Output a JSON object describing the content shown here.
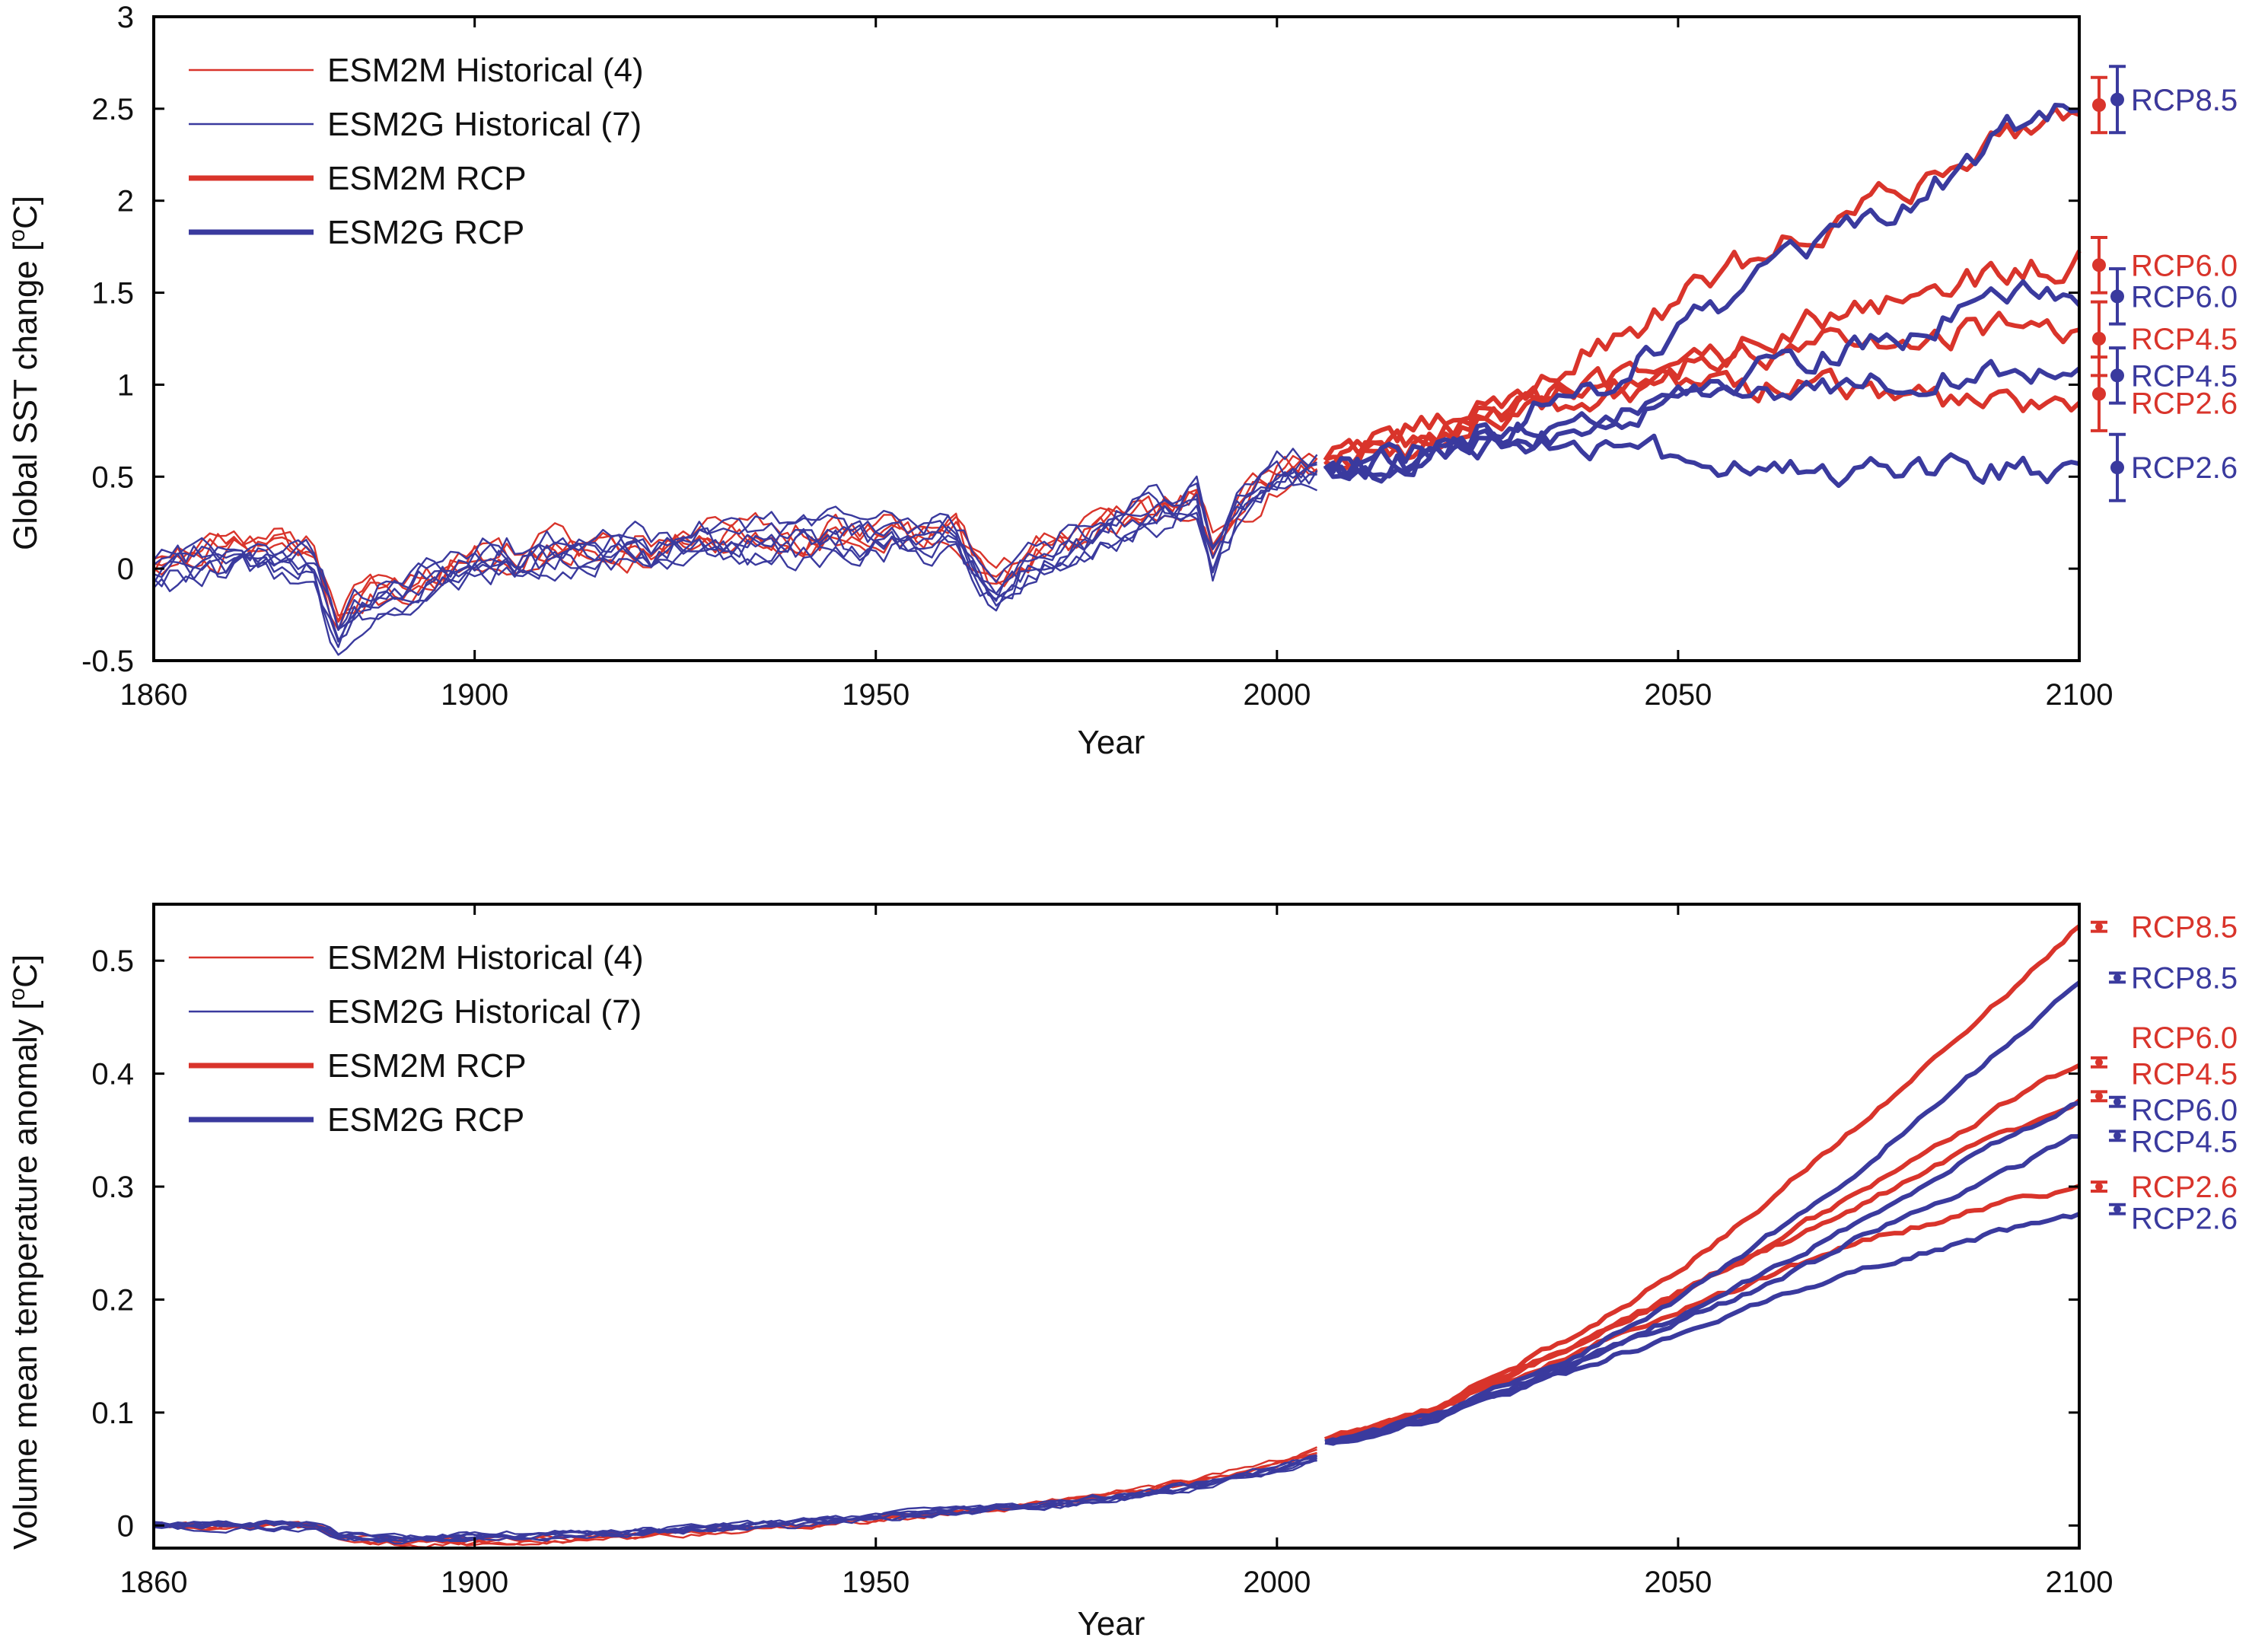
{
  "colors": {
    "esm2m": "#d9342b",
    "esm2g": "#3a3a9e",
    "axis": "#000000"
  },
  "chart_data": [
    {
      "type": "line",
      "xlabel": "Year",
      "ylabel": "Global SST change [°C]",
      "ylabel_parts": {
        "main": "Global SST change [",
        "sup": "o",
        "unit": "C]"
      },
      "xlim": [
        1860,
        2100
      ],
      "ylim": [
        -0.5,
        3
      ],
      "xticks": [
        1860,
        1900,
        1950,
        2000,
        2050,
        2100
      ],
      "yticks": [
        -0.5,
        0,
        0.5,
        1,
        1.5,
        2,
        2.5,
        3
      ],
      "ytick_labels": [
        "-0.5",
        "0",
        "0.5",
        "1",
        "1.5",
        "2",
        "2.5",
        "3"
      ],
      "grid": false,
      "legend_position": "upper-left",
      "legend": [
        {
          "label": "ESM2M Historical (4)",
          "color": "#d9342b",
          "weight": "thin"
        },
        {
          "label": "ESM2G Historical (7)",
          "color": "#3a3a9e",
          "weight": "thin"
        },
        {
          "label": "ESM2M RCP",
          "color": "#d9342b",
          "weight": "thick"
        },
        {
          "label": "ESM2G RCP",
          "color": "#3a3a9e",
          "weight": "thick"
        }
      ],
      "series": [
        {
          "model": "ESM2M",
          "kind": "historical",
          "color": "#d9342b",
          "x": [
            1860,
            1870,
            1880,
            1883,
            1885,
            1890,
            1900,
            1910,
            1920,
            1930,
            1940,
            1950,
            1960,
            1963,
            1965,
            1970,
            1980,
            1990,
            1992,
            1995,
            2000,
            2005
          ],
          "y": [
            0.05,
            0.12,
            0.1,
            -0.3,
            -0.18,
            -0.1,
            0.05,
            0.1,
            0.12,
            0.15,
            0.18,
            0.18,
            0.2,
            0.0,
            -0.1,
            0.1,
            0.25,
            0.4,
            0.1,
            0.35,
            0.5,
            0.58
          ]
        },
        {
          "model": "ESM2G",
          "kind": "historical",
          "color": "#3a3a9e",
          "x": [
            1860,
            1870,
            1880,
            1883,
            1885,
            1890,
            1900,
            1910,
            1920,
            1930,
            1940,
            1950,
            1960,
            1963,
            1965,
            1970,
            1980,
            1990,
            1992,
            1995,
            2000,
            2005
          ],
          "y": [
            0.0,
            0.05,
            0.02,
            -0.38,
            -0.25,
            -0.12,
            0.02,
            0.08,
            0.1,
            0.12,
            0.15,
            0.15,
            0.18,
            -0.05,
            -0.15,
            0.05,
            0.22,
            0.38,
            0.05,
            0.3,
            0.48,
            0.55
          ]
        },
        {
          "model": "ESM2M",
          "scenario": "RCP8.5",
          "kind": "rcp",
          "color": "#d9342b",
          "x": [
            2006,
            2010,
            2020,
            2030,
            2040,
            2050,
            2060,
            2070,
            2080,
            2090,
            2100
          ],
          "y": [
            0.62,
            0.62,
            0.78,
            0.95,
            1.2,
            1.45,
            1.7,
            1.9,
            2.1,
            2.35,
            2.52
          ]
        },
        {
          "model": "ESM2M",
          "scenario": "RCP6.0",
          "kind": "rcp",
          "color": "#d9342b",
          "x": [
            2006,
            2010,
            2020,
            2030,
            2040,
            2050,
            2060,
            2070,
            2080,
            2090,
            2100
          ],
          "y": [
            0.6,
            0.6,
            0.7,
            0.85,
            0.95,
            1.1,
            1.25,
            1.4,
            1.5,
            1.6,
            1.68
          ]
        },
        {
          "model": "ESM2M",
          "scenario": "RCP4.5",
          "kind": "rcp",
          "color": "#d9342b",
          "x": [
            2006,
            2010,
            2020,
            2030,
            2040,
            2050,
            2060,
            2070,
            2080,
            2090,
            2100
          ],
          "y": [
            0.6,
            0.62,
            0.72,
            0.85,
            0.98,
            1.08,
            1.18,
            1.22,
            1.28,
            1.3,
            1.25
          ]
        },
        {
          "model": "ESM2M",
          "scenario": "RCP2.6",
          "kind": "rcp",
          "color": "#d9342b",
          "x": [
            2006,
            2010,
            2020,
            2030,
            2040,
            2050,
            2060,
            2070,
            2080,
            2090,
            2100
          ],
          "y": [
            0.6,
            0.62,
            0.75,
            0.9,
            0.98,
            1.0,
            1.0,
            0.98,
            0.92,
            0.9,
            0.95
          ]
        },
        {
          "model": "ESM2G",
          "scenario": "RCP8.5",
          "kind": "rcp",
          "color": "#3a3a9e",
          "x": [
            2006,
            2010,
            2020,
            2030,
            2040,
            2050,
            2060,
            2070,
            2080,
            2090,
            2100
          ],
          "y": [
            0.55,
            0.55,
            0.65,
            0.82,
            1.0,
            1.3,
            1.55,
            1.78,
            2.0,
            2.35,
            2.55
          ]
        },
        {
          "model": "ESM2G",
          "scenario": "RCP6.0",
          "kind": "rcp",
          "color": "#3a3a9e",
          "x": [
            2006,
            2010,
            2020,
            2030,
            2040,
            2050,
            2060,
            2070,
            2080,
            2090,
            2100
          ],
          "y": [
            0.55,
            0.55,
            0.6,
            0.7,
            0.8,
            0.95,
            1.1,
            1.2,
            1.3,
            1.45,
            1.52
          ]
        },
        {
          "model": "ESM2G",
          "scenario": "RCP4.5",
          "kind": "rcp",
          "color": "#3a3a9e",
          "x": [
            2006,
            2010,
            2020,
            2030,
            2040,
            2050,
            2060,
            2070,
            2080,
            2090,
            2100
          ],
          "y": [
            0.55,
            0.55,
            0.65,
            0.75,
            0.85,
            0.9,
            0.95,
            1.0,
            1.05,
            1.05,
            1.05
          ]
        },
        {
          "model": "ESM2G",
          "scenario": "RCP2.6",
          "kind": "rcp",
          "color": "#3a3a9e",
          "x": [
            2006,
            2010,
            2020,
            2030,
            2040,
            2050,
            2060,
            2070,
            2080,
            2090,
            2100
          ],
          "y": [
            0.55,
            0.55,
            0.65,
            0.72,
            0.7,
            0.6,
            0.55,
            0.52,
            0.55,
            0.55,
            0.55
          ]
        }
      ],
      "endpoints": [
        {
          "model": "ESM2M",
          "label": "RCP8.5",
          "color": "#d9342b",
          "y": 2.52,
          "err": 0.15,
          "label_y": 2.55
        },
        {
          "model": "ESM2G",
          "label": "RCP8.5",
          "color": "#3a3a9e",
          "y": 2.55,
          "err": 0.18,
          "label_y": 2.55
        },
        {
          "model": "ESM2M",
          "label": "RCP6.0",
          "color": "#d9342b",
          "y": 1.65,
          "err": 0.15,
          "label_y": 1.65
        },
        {
          "model": "ESM2G",
          "label": "RCP6.0",
          "color": "#3a3a9e",
          "y": 1.48,
          "err": 0.15,
          "label_y": 1.48
        },
        {
          "model": "ESM2M",
          "label": "RCP4.5",
          "color": "#d9342b",
          "y": 1.25,
          "err": 0.2,
          "label_y": 1.25
        },
        {
          "model": "ESM2G",
          "label": "RCP4.5",
          "color": "#3a3a9e",
          "y": 1.05,
          "err": 0.15,
          "label_y": 1.05
        },
        {
          "model": "ESM2M",
          "label": "RCP2.6",
          "color": "#d9342b",
          "y": 0.95,
          "err": 0.2,
          "label_y": 0.9
        },
        {
          "model": "ESM2G",
          "label": "RCP2.6",
          "color": "#3a3a9e",
          "y": 0.55,
          "err": 0.18,
          "label_y": 0.55
        }
      ]
    },
    {
      "type": "line",
      "xlabel": "Year",
      "ylabel": "Volume mean temperature anomaly [°C]",
      "ylabel_parts": {
        "main": "Volume mean temperature anomaly [",
        "sup": "o",
        "unit": "C]"
      },
      "xlim": [
        1860,
        2100
      ],
      "ylim": [
        -0.02,
        0.55
      ],
      "xticks": [
        1860,
        1900,
        1950,
        2000,
        2050,
        2100
      ],
      "yticks": [
        0,
        0.1,
        0.2,
        0.3,
        0.4,
        0.5
      ],
      "ytick_labels": [
        "0",
        "0.1",
        "0.2",
        "0.3",
        "0.4",
        "0.5"
      ],
      "grid": false,
      "legend_position": "upper-left",
      "legend": [
        {
          "label": "ESM2M Historical (4)",
          "color": "#d9342b",
          "weight": "thin"
        },
        {
          "label": "ESM2G Historical (7)",
          "color": "#3a3a9e",
          "weight": "thin"
        },
        {
          "label": "ESM2M RCP",
          "color": "#d9342b",
          "weight": "thick"
        },
        {
          "label": "ESM2G RCP",
          "color": "#3a3a9e",
          "weight": "thick"
        }
      ],
      "series": [
        {
          "model": "ESM2M",
          "kind": "historical",
          "color": "#d9342b",
          "x": [
            1860,
            1880,
            1883,
            1890,
            1900,
            1920,
            1940,
            1950,
            1960,
            1970,
            1980,
            1990,
            2000,
            2005
          ],
          "y": [
            0.0,
            0.0,
            -0.01,
            -0.015,
            -0.015,
            -0.01,
            0.0,
            0.005,
            0.012,
            0.018,
            0.028,
            0.04,
            0.055,
            0.065
          ]
        },
        {
          "model": "ESM2G",
          "kind": "historical",
          "color": "#3a3a9e",
          "x": [
            1860,
            1880,
            1883,
            1890,
            1900,
            1920,
            1940,
            1950,
            1960,
            1970,
            1980,
            1990,
            2000,
            2005
          ],
          "y": [
            0.0,
            0.0,
            -0.008,
            -0.012,
            -0.01,
            -0.006,
            0.002,
            0.007,
            0.013,
            0.017,
            0.025,
            0.035,
            0.05,
            0.06
          ]
        },
        {
          "model": "ESM2M",
          "scenario": "RCP8.5",
          "kind": "rcp",
          "color": "#d9342b",
          "x": [
            2006,
            2020,
            2040,
            2050,
            2060,
            2070,
            2080,
            2090,
            2100
          ],
          "y": [
            0.075,
            0.105,
            0.18,
            0.225,
            0.28,
            0.34,
            0.4,
            0.465,
            0.53
          ]
        },
        {
          "model": "ESM2M",
          "scenario": "RCP6.0",
          "kind": "rcp",
          "color": "#d9342b",
          "x": [
            2006,
            2020,
            2040,
            2050,
            2060,
            2070,
            2080,
            2090,
            2100
          ],
          "y": [
            0.075,
            0.103,
            0.17,
            0.205,
            0.245,
            0.285,
            0.325,
            0.37,
            0.41
          ]
        },
        {
          "model": "ESM2M",
          "scenario": "RCP4.5",
          "kind": "rcp",
          "color": "#d9342b",
          "x": [
            2006,
            2020,
            2040,
            2050,
            2060,
            2070,
            2080,
            2090,
            2100
          ],
          "y": [
            0.075,
            0.104,
            0.17,
            0.205,
            0.24,
            0.275,
            0.31,
            0.345,
            0.375
          ]
        },
        {
          "model": "ESM2M",
          "scenario": "RCP2.6",
          "kind": "rcp",
          "color": "#d9342b",
          "x": [
            2006,
            2020,
            2040,
            2050,
            2060,
            2070,
            2080,
            2090,
            2100
          ],
          "y": [
            0.075,
            0.102,
            0.162,
            0.19,
            0.218,
            0.245,
            0.265,
            0.285,
            0.3
          ]
        },
        {
          "model": "ESM2G",
          "scenario": "RCP8.5",
          "kind": "rcp",
          "color": "#3a3a9e",
          "x": [
            2006,
            2020,
            2040,
            2050,
            2060,
            2070,
            2080,
            2090,
            2100
          ],
          "y": [
            0.072,
            0.098,
            0.16,
            0.2,
            0.25,
            0.3,
            0.36,
            0.42,
            0.48
          ]
        },
        {
          "model": "ESM2G",
          "scenario": "RCP6.0",
          "kind": "rcp",
          "color": "#3a3a9e",
          "x": [
            2006,
            2020,
            2040,
            2050,
            2060,
            2070,
            2080,
            2090,
            2100
          ],
          "y": [
            0.072,
            0.096,
            0.152,
            0.185,
            0.22,
            0.26,
            0.3,
            0.34,
            0.375
          ]
        },
        {
          "model": "ESM2G",
          "scenario": "RCP4.5",
          "kind": "rcp",
          "color": "#3a3a9e",
          "x": [
            2006,
            2020,
            2040,
            2050,
            2060,
            2070,
            2080,
            2090,
            2100
          ],
          "y": [
            0.072,
            0.096,
            0.15,
            0.18,
            0.21,
            0.245,
            0.28,
            0.31,
            0.345
          ]
        },
        {
          "model": "ESM2G",
          "scenario": "RCP2.6",
          "kind": "rcp",
          "color": "#3a3a9e",
          "x": [
            2006,
            2020,
            2040,
            2050,
            2060,
            2070,
            2080,
            2090,
            2100
          ],
          "y": [
            0.072,
            0.095,
            0.145,
            0.17,
            0.195,
            0.22,
            0.24,
            0.26,
            0.275
          ]
        }
      ],
      "endpoints": [
        {
          "model": "ESM2M",
          "label": "RCP8.5",
          "color": "#d9342b",
          "y": 0.53,
          "err": 0.004,
          "label_y": 0.53
        },
        {
          "model": "ESM2G",
          "label": "RCP8.5",
          "color": "#3a3a9e",
          "y": 0.485,
          "err": 0.004,
          "label_y": 0.485
        },
        {
          "model": "ESM2M",
          "label": "RCP6.0",
          "color": "#d9342b",
          "y": 0.41,
          "err": 0.004,
          "label_y": 0.432
        },
        {
          "model": "ESM2M",
          "label": "RCP4.5",
          "color": "#d9342b",
          "y": 0.38,
          "err": 0.004,
          "label_y": 0.4
        },
        {
          "model": "ESM2G",
          "label": "RCP6.0",
          "color": "#3a3a9e",
          "y": 0.375,
          "err": 0.004,
          "label_y": 0.368
        },
        {
          "model": "ESM2G",
          "label": "RCP4.5",
          "color": "#3a3a9e",
          "y": 0.345,
          "err": 0.004,
          "label_y": 0.34
        },
        {
          "model": "ESM2M",
          "label": "RCP2.6",
          "color": "#d9342b",
          "y": 0.3,
          "err": 0.004,
          "label_y": 0.3
        },
        {
          "model": "ESM2G",
          "label": "RCP2.6",
          "color": "#3a3a9e",
          "y": 0.28,
          "err": 0.004,
          "label_y": 0.272
        }
      ]
    }
  ]
}
